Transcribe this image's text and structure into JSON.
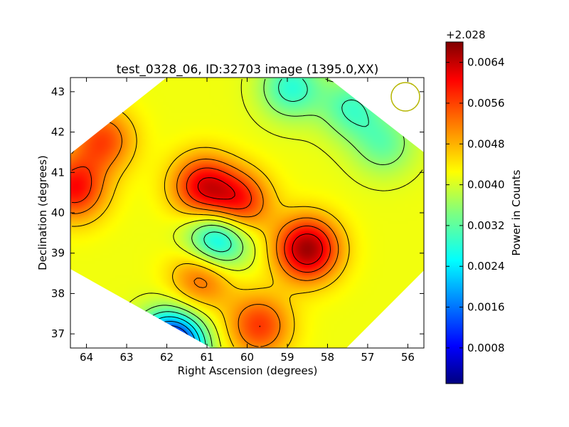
{
  "chart_data": {
    "type": "heatmap",
    "title": "test_0328_06, ID:32703 image (1395.0,XX)",
    "xlabel": "Right Ascension (degrees)",
    "ylabel": "Declination (degrees)",
    "xlim": [
      64.4,
      55.6
    ],
    "ylim": [
      36.65,
      43.35
    ],
    "x_ticks": [
      64,
      63,
      62,
      61,
      60,
      59,
      58,
      57,
      56
    ],
    "y_ticks": [
      37,
      38,
      39,
      40,
      41,
      42,
      43
    ],
    "grid": false,
    "colormap": "jet",
    "colorbar": {
      "label": "Power in Counts",
      "offset_label": "+2.028",
      "vmin": 0.0001,
      "vmax": 0.0068,
      "ticks": [
        0.0008,
        0.0016,
        0.0024,
        0.0032,
        0.004,
        0.0048,
        0.0056,
        0.0064
      ],
      "tick_labels": [
        "0.0008",
        "0.0016",
        "0.0024",
        "0.0032",
        "0.0040",
        "0.0048",
        "0.0056",
        "0.0064"
      ]
    },
    "background_level": 0.0042,
    "features": [
      {
        "kind": "peak",
        "ra": 64.3,
        "dec": 40.6,
        "value": 0.0059
      },
      {
        "kind": "peak",
        "ra": 63.6,
        "dec": 41.8,
        "value": 0.0055
      },
      {
        "kind": "peak",
        "ra": 61.1,
        "dec": 40.65,
        "value": 0.006
      },
      {
        "kind": "peak",
        "ra": 60.2,
        "dec": 40.25,
        "value": 0.0058
      },
      {
        "kind": "peak",
        "ra": 58.5,
        "dec": 39.1,
        "value": 0.0066
      },
      {
        "kind": "peak",
        "ra": 61.1,
        "dec": 38.45,
        "value": 0.0055
      },
      {
        "kind": "peak",
        "ra": 59.7,
        "dec": 37.2,
        "value": 0.0056
      },
      {
        "kind": "trough",
        "ra": 60.75,
        "dec": 39.3,
        "value": 0.0022
      },
      {
        "kind": "trough",
        "ra": 58.9,
        "dec": 43.1,
        "value": 0.0029
      },
      {
        "kind": "trough",
        "ra": 57.4,
        "dec": 42.6,
        "value": 0.0031
      },
      {
        "kind": "trough",
        "ra": 56.6,
        "dec": 41.7,
        "value": 0.0033
      },
      {
        "kind": "trough",
        "ra": 61.9,
        "dec": 36.7,
        "value": 0.0002
      }
    ],
    "beam": {
      "ra": 56.1,
      "dec": 42.9,
      "color": "#b5b500"
    }
  }
}
